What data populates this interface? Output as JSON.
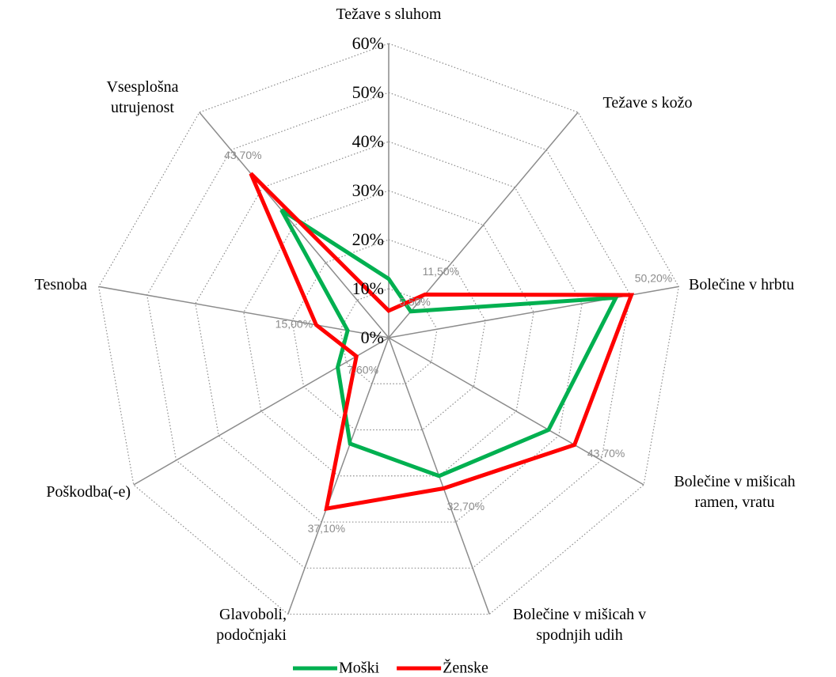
{
  "chart_data": {
    "type": "radar",
    "categories": [
      "Težave s sluhom",
      "Težave s kožo",
      "Bolečine v hrbtu",
      "Bolečine v mišicah ramen, vratu",
      "Bolečine v mišicah v spodnjih udih",
      "Glavoboli, podočnjaki",
      "Poškodba(-e)",
      "Tesnoba",
      "Vsesplošna utrujenost"
    ],
    "series": [
      {
        "name": "Moški",
        "color": "#00b050",
        "values": [
          12,
          7,
          47,
          37.6,
          30,
          23,
          12,
          8.5,
          34
        ]
      },
      {
        "name": "Ženske",
        "color": "#ff0000",
        "values": [
          5.5,
          11.5,
          50.2,
          43.7,
          32.7,
          37.1,
          7.6,
          15,
          43.7
        ],
        "value_labels": [
          "5,50%",
          "11,50%",
          "50,20%",
          "43,70%",
          "32,70%",
          "37,10%",
          "7,60%",
          "15,00%",
          "43,70%"
        ]
      }
    ],
    "ylim": [
      0,
      60
    ],
    "yticks": [
      {
        "value": 0,
        "label": "0%"
      },
      {
        "value": 10,
        "label": "10%"
      },
      {
        "value": 20,
        "label": "20%"
      },
      {
        "value": 30,
        "label": "30%"
      },
      {
        "value": 40,
        "label": "40%"
      },
      {
        "value": 50,
        "label": "50%"
      },
      {
        "value": 60,
        "label": "60%"
      }
    ],
    "grid": true,
    "legend": "bottom"
  }
}
